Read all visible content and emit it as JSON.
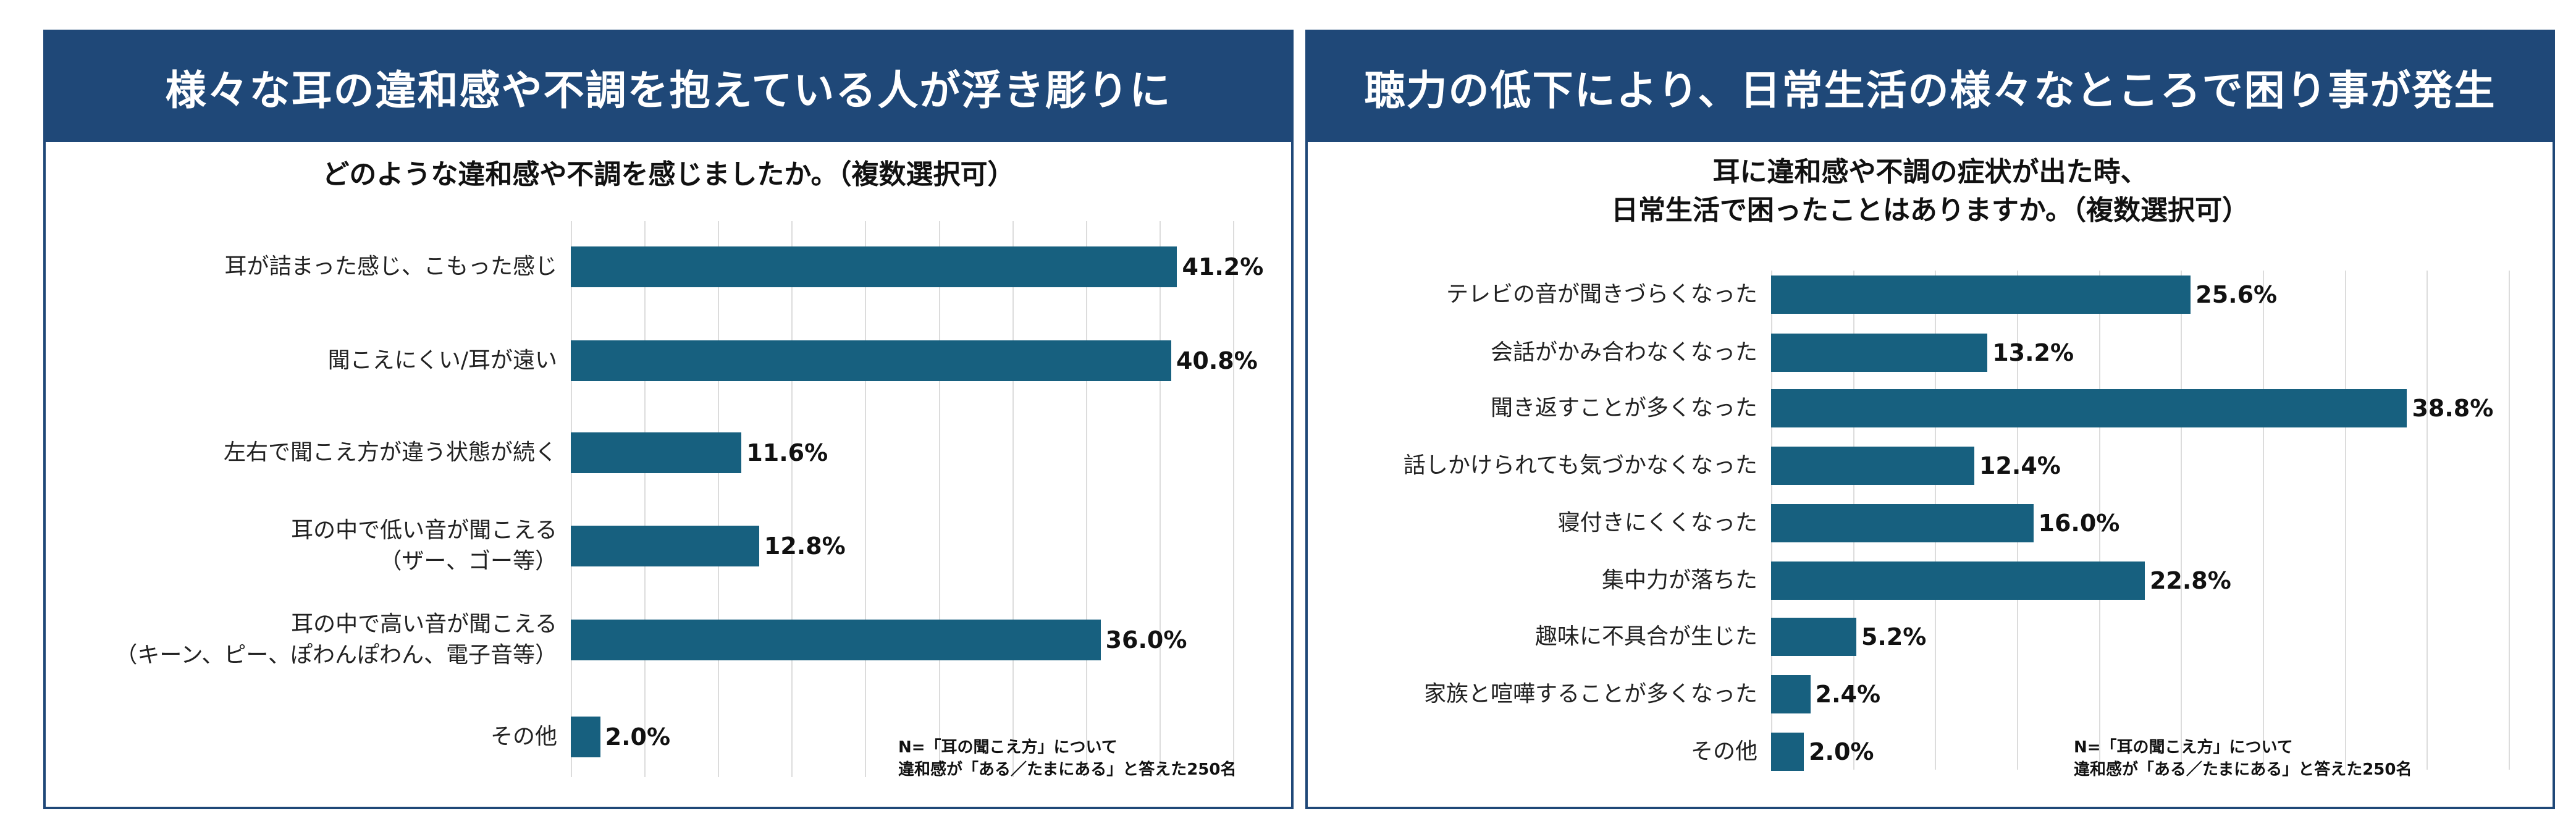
{
  "colors": {
    "header": "#1f4878",
    "bar": "#17607f",
    "grid": "#dcdcdc"
  },
  "left_panel": {
    "title": "様々な耳の違和感や不調を抱えている人が浮き彫りに",
    "subtitle": "どのような違和感や不調を感じましたか。（複数選択可）",
    "note_line1": "N=「耳の聞こえ方」について",
    "note_line2": "違和感が「ある／たまにある」と答えた250名"
  },
  "right_panel": {
    "title": "聴力の低下により、日常生活の様々なところで困り事が発生",
    "subtitle_line1": "耳に違和感や不調の症状が出た時、",
    "subtitle_line2": "日常生活で困ったことはありますか。（複数選択可）",
    "note_line1": "N=「耳の聞こえ方」について",
    "note_line2": "違和感が「ある／たまにある」と答えた250名"
  },
  "chart_data": [
    {
      "type": "bar",
      "orientation": "horizontal",
      "title": "どのような違和感や不調を感じましたか。（複数選択可）",
      "categories": [
        "耳が詰まった感じ、こもった感じ",
        "聞こえにくい/耳が遠い",
        "左右で聞こえ方が違う状態が続く",
        "耳の中で低い音が聞こえる\n（ザー、ゴー等）",
        "耳の中で高い音が聞こえる\n（キーン、ピー、ぽわんぽわん、電子音等）",
        "その他"
      ],
      "values": [
        41.2,
        40.8,
        11.6,
        12.8,
        36.0,
        2.0
      ],
      "labels": [
        "41.2%",
        "40.8%",
        "11.6%",
        "12.8%",
        "36.0%",
        "2.0%"
      ],
      "xlim": [
        0,
        45
      ],
      "grid_step": 5,
      "grid": true,
      "unit": "%"
    },
    {
      "type": "bar",
      "orientation": "horizontal",
      "title": "耳に違和感や不調の症状が出た時、日常生活で困ったことはありますか。（複数選択可）",
      "categories": [
        "テレビの音が聞きづらくなった",
        "会話がかみ合わなくなった",
        "聞き返すことが多くなった",
        "話しかけられても気づかなくなった",
        "寝付きにくくなった",
        "集中力が落ちた",
        "趣味に不具合が生じた",
        "家族と喧嘩することが多くなった",
        "その他"
      ],
      "values": [
        25.6,
        13.2,
        38.8,
        12.4,
        16.0,
        22.8,
        5.2,
        2.4,
        2.0
      ],
      "labels": [
        "25.6%",
        "13.2%",
        "38.8%",
        "12.4%",
        "16.0%",
        "22.8%",
        "5.2%",
        "2.4%",
        "2.0%"
      ],
      "xlim": [
        0,
        45
      ],
      "grid_step": 5,
      "grid": true,
      "unit": "%"
    }
  ]
}
